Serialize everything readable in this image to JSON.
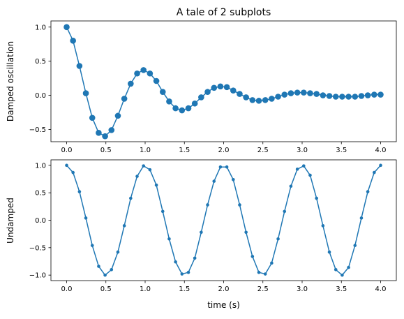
{
  "chart_data": [
    {
      "type": "line",
      "title": "A tale of 2 subplots",
      "xlabel": "",
      "ylabel": "Damped oscillation",
      "xlim": [
        -0.2,
        4.2
      ],
      "ylim": [
        -0.68,
        1.09
      ],
      "xticks": [
        0.0,
        0.5,
        1.0,
        1.5,
        2.0,
        2.5,
        3.0,
        3.5,
        4.0
      ],
      "xtick_labels": [
        "0.0",
        "0.5",
        "1.0",
        "1.5",
        "2.0",
        "2.5",
        "3.0",
        "3.5",
        "4.0"
      ],
      "yticks": [
        -0.5,
        0.0,
        0.5,
        1.0
      ],
      "ytick_labels": [
        "−0.5",
        "0.0",
        "0.5",
        "1.0"
      ],
      "grid": false,
      "marker": "o",
      "color": "#1f77b4",
      "series": [
        {
          "x": [
            0.0,
            0.0816,
            0.1633,
            0.2449,
            0.3265,
            0.4082,
            0.4898,
            0.5714,
            0.6531,
            0.7347,
            0.8163,
            0.898,
            0.9796,
            1.0612,
            1.1429,
            1.2245,
            1.3061,
            1.3878,
            1.4694,
            1.551,
            1.6327,
            1.7143,
            1.7959,
            1.8776,
            1.9592,
            2.0408,
            2.1224,
            2.2041,
            2.2857,
            2.3673,
            2.449,
            2.5306,
            2.6122,
            2.6939,
            2.7755,
            2.8571,
            2.9388,
            3.0204,
            3.102,
            3.1837,
            3.2653,
            3.3469,
            3.4286,
            3.5102,
            3.5918,
            3.6735,
            3.7551,
            3.8367,
            3.9184,
            4.0
          ],
          "y": [
            1.0,
            0.8,
            0.43,
            0.03,
            -0.33,
            -0.55,
            -0.6,
            -0.51,
            -0.3,
            -0.05,
            0.17,
            0.32,
            0.37,
            0.32,
            0.21,
            0.05,
            -0.09,
            -0.19,
            -0.22,
            -0.19,
            -0.12,
            -0.03,
            0.05,
            0.11,
            0.13,
            0.12,
            0.07,
            0.02,
            -0.03,
            -0.07,
            -0.08,
            -0.07,
            -0.05,
            -0.02,
            0.01,
            0.03,
            0.04,
            0.04,
            0.03,
            0.02,
            0.0,
            -0.01,
            -0.02,
            -0.02,
            -0.02,
            -0.02,
            -0.01,
            0.0,
            0.01,
            0.01
          ]
        }
      ]
    },
    {
      "type": "line",
      "title": "",
      "xlabel": "time (s)",
      "ylabel": "Undamped",
      "xlim": [
        -0.2,
        4.2
      ],
      "ylim": [
        -1.1,
        1.1
      ],
      "xticks": [
        0.0,
        0.5,
        1.0,
        1.5,
        2.0,
        2.5,
        3.0,
        3.5,
        4.0
      ],
      "xtick_labels": [
        "0.0",
        "0.5",
        "1.0",
        "1.5",
        "2.0",
        "2.5",
        "3.0",
        "3.5",
        "4.0"
      ],
      "yticks": [
        -1.0,
        -0.5,
        0.0,
        0.5,
        1.0
      ],
      "ytick_labels": [
        "−1.0",
        "−0.5",
        "0.0",
        "0.5",
        "1.0"
      ],
      "grid": false,
      "marker": ".",
      "color": "#1f77b4",
      "series": [
        {
          "x": [
            0.0,
            0.0816,
            0.1633,
            0.2449,
            0.3265,
            0.4082,
            0.4898,
            0.5714,
            0.6531,
            0.7347,
            0.8163,
            0.898,
            0.9796,
            1.0612,
            1.1429,
            1.2245,
            1.3061,
            1.3878,
            1.4694,
            1.551,
            1.6327,
            1.7143,
            1.7959,
            1.8776,
            1.9592,
            2.0408,
            2.1224,
            2.2041,
            2.2857,
            2.3673,
            2.449,
            2.5306,
            2.6122,
            2.6939,
            2.7755,
            2.8571,
            2.9388,
            3.0204,
            3.102,
            3.1837,
            3.2653,
            3.3469,
            3.4286,
            3.5102,
            3.5918,
            3.6735,
            3.7551,
            3.8367,
            3.9184,
            4.0
          ],
          "y": [
            1.0,
            0.87,
            0.52,
            0.04,
            -0.46,
            -0.84,
            -1.0,
            -0.9,
            -0.58,
            -0.1,
            0.4,
            0.8,
            0.99,
            0.92,
            0.64,
            0.16,
            -0.34,
            -0.76,
            -0.98,
            -0.95,
            -0.69,
            -0.22,
            0.28,
            0.71,
            0.97,
            0.97,
            0.74,
            0.28,
            -0.22,
            -0.66,
            -0.95,
            -0.98,
            -0.78,
            -0.34,
            0.16,
            0.62,
            0.93,
            0.99,
            0.82,
            0.4,
            -0.1,
            -0.58,
            -0.9,
            -1.0,
            -0.86,
            -0.46,
            0.04,
            0.52,
            0.87,
            1.0
          ]
        }
      ]
    }
  ]
}
